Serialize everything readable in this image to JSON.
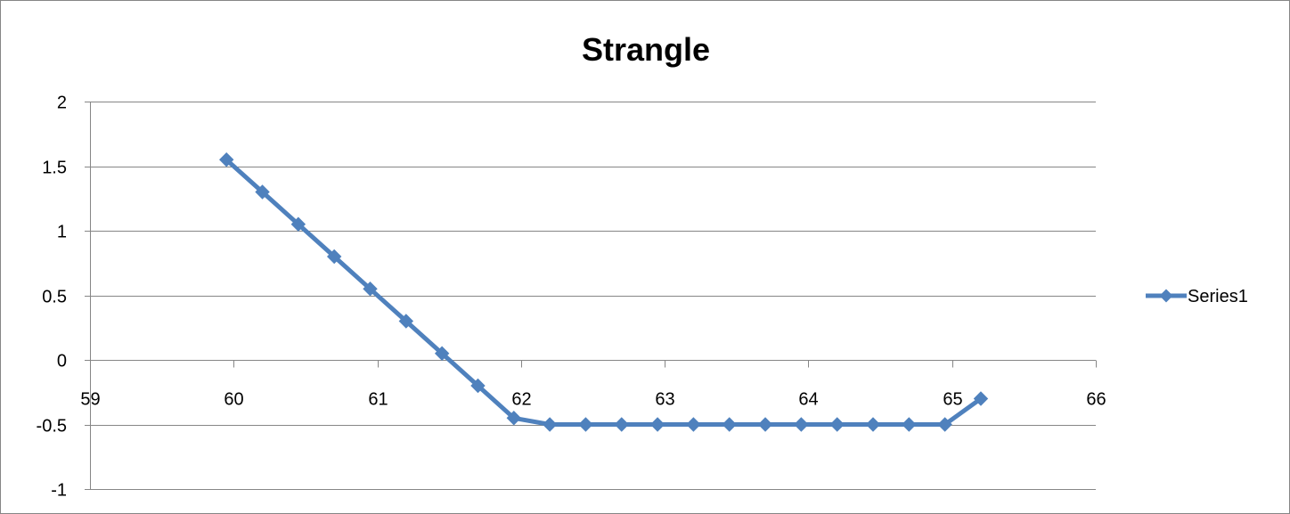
{
  "chart_data": {
    "type": "scatter",
    "title": "Strangle",
    "xlim": [
      59,
      66
    ],
    "ylim": [
      -1,
      2
    ],
    "x_ticks": [
      59,
      60,
      61,
      62,
      63,
      64,
      65,
      66
    ],
    "y_ticks": [
      -1,
      -0.5,
      0,
      0.5,
      1,
      1.5,
      2
    ],
    "x_tick_labels": [
      "59",
      "60",
      "61",
      "62",
      "63",
      "64",
      "65",
      "66"
    ],
    "y_tick_labels": [
      "-1",
      "-0.5",
      "0",
      "0.5",
      "1",
      "1.5",
      "2"
    ],
    "grid": "horizontal",
    "legend_position": "right",
    "series": [
      {
        "name": "Series1",
        "color": "#4F81BD",
        "marker": "diamond",
        "points": [
          [
            59.95,
            1.55
          ],
          [
            60.2,
            1.3
          ],
          [
            60.45,
            1.05
          ],
          [
            60.7,
            0.8
          ],
          [
            60.95,
            0.55
          ],
          [
            61.2,
            0.3
          ],
          [
            61.45,
            0.05
          ],
          [
            61.7,
            -0.2
          ],
          [
            61.95,
            -0.45
          ],
          [
            62.2,
            -0.5
          ],
          [
            62.45,
            -0.5
          ],
          [
            62.7,
            -0.5
          ],
          [
            62.95,
            -0.5
          ],
          [
            63.2,
            -0.5
          ],
          [
            63.45,
            -0.5
          ],
          [
            63.7,
            -0.5
          ],
          [
            63.95,
            -0.5
          ],
          [
            64.2,
            -0.5
          ],
          [
            64.45,
            -0.5
          ],
          [
            64.7,
            -0.5
          ],
          [
            64.95,
            -0.5
          ],
          [
            65.2,
            -0.3
          ]
        ]
      }
    ]
  }
}
